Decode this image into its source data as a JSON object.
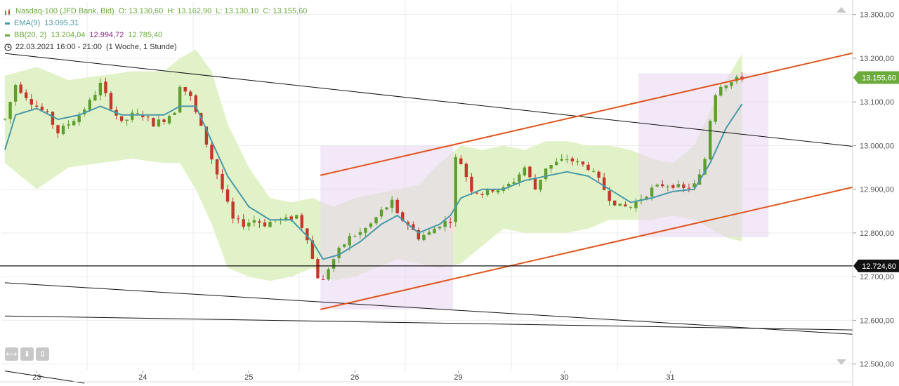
{
  "legend": {
    "instrument": "Nasdaq-100 (JFD Bank, Bid)",
    "open": "O: 13.130,60",
    "high": "H: 13.162,90",
    "low": "L: 13.130,10",
    "close": "C: 13.155,60",
    "ema_label": "EMA(9)",
    "ema_value": "13.095,31",
    "bb_label": "BB(20, 2)",
    "bb_upper": "13.204,04",
    "bb_middle": "12.994,72",
    "bb_lower": "12.785,40",
    "period": "22.03.2021 16:00 - 21:00",
    "timeframe": "(1 Woche, 1 Stunde)"
  },
  "colors": {
    "up": "#5e9e2f",
    "down": "#c0392b",
    "ema": "#4a99a8",
    "bb_fill": "#e2f2c8",
    "bb_lower_text": "#8e2a8e",
    "box": "#e8d6f2",
    "channel": "#e0561c",
    "trendline": "#111111",
    "price_badge": "#6aab3a",
    "level_badge": "#111111"
  },
  "chart_data": {
    "type": "candlestick",
    "ylim": [
      12485,
      13330
    ],
    "y_ticks": [
      12500,
      12600,
      12700,
      12800,
      12900,
      13000,
      13100,
      13200,
      13300
    ],
    "y_tick_labels": [
      "12.500,00",
      "12.600,00",
      "12.700,00",
      "12.800,00",
      "12.900,00",
      "13.000,00",
      "13.100,00",
      "13.200,00",
      "13.300,00"
    ],
    "x_days": [
      "23",
      "24",
      "25",
      "26",
      "29",
      "30",
      "31"
    ],
    "last_price": {
      "value": 13155.6,
      "label": "13.155,60"
    },
    "level": {
      "value": 12724.6,
      "label": "12.724,60"
    },
    "bars": 140,
    "anchors": [
      [
        0,
        13060
      ],
      [
        2,
        13140
      ],
      [
        5,
        13100
      ],
      [
        8,
        13070
      ],
      [
        10,
        13030
      ],
      [
        12,
        13050
      ],
      [
        14,
        13070
      ],
      [
        16,
        13100
      ],
      [
        18,
        13140
      ],
      [
        20,
        13090
      ],
      [
        22,
        13050
      ],
      [
        24,
        13070
      ],
      [
        26,
        13070
      ],
      [
        28,
        13050
      ],
      [
        30,
        13060
      ],
      [
        32,
        13080
      ],
      [
        33,
        13140
      ],
      [
        35,
        13110
      ],
      [
        37,
        13040
      ],
      [
        39,
        12970
      ],
      [
        41,
        12900
      ],
      [
        43,
        12830
      ],
      [
        45,
        12820
      ],
      [
        47,
        12830
      ],
      [
        49,
        12820
      ],
      [
        51,
        12830
      ],
      [
        53,
        12830
      ],
      [
        55,
        12840
      ],
      [
        57,
        12790
      ],
      [
        58,
        12740
      ],
      [
        59,
        12700
      ],
      [
        60,
        12690
      ],
      [
        61,
        12720
      ],
      [
        63,
        12760
      ],
      [
        65,
        12790
      ],
      [
        67,
        12800
      ],
      [
        69,
        12820
      ],
      [
        71,
        12850
      ],
      [
        73,
        12870
      ],
      [
        74,
        12840
      ],
      [
        76,
        12820
      ],
      [
        78,
        12790
      ],
      [
        80,
        12800
      ],
      [
        82,
        12820
      ],
      [
        84,
        12830
      ],
      [
        85,
        12970
      ],
      [
        86,
        12960
      ],
      [
        88,
        12900
      ],
      [
        90,
        12890
      ],
      [
        92,
        12900
      ],
      [
        94,
        12900
      ],
      [
        96,
        12920
      ],
      [
        98,
        12950
      ],
      [
        100,
        12900
      ],
      [
        102,
        12950
      ],
      [
        104,
        12960
      ],
      [
        106,
        12970
      ],
      [
        108,
        12960
      ],
      [
        110,
        12950
      ],
      [
        112,
        12920
      ],
      [
        114,
        12880
      ],
      [
        116,
        12860
      ],
      [
        118,
        12860
      ],
      [
        120,
        12880
      ],
      [
        122,
        12900
      ],
      [
        124,
        12910
      ],
      [
        126,
        12910
      ],
      [
        128,
        12900
      ],
      [
        130,
        12910
      ],
      [
        131,
        12930
      ],
      [
        132,
        12970
      ],
      [
        133,
        13060
      ],
      [
        134,
        13120
      ],
      [
        135,
        13140
      ],
      [
        137,
        13145
      ],
      [
        139,
        13156
      ]
    ],
    "ema": [
      [
        0,
        12990
      ],
      [
        2,
        13070
      ],
      [
        6,
        13085
      ],
      [
        10,
        13060
      ],
      [
        14,
        13070
      ],
      [
        18,
        13090
      ],
      [
        22,
        13070
      ],
      [
        26,
        13070
      ],
      [
        30,
        13070
      ],
      [
        33,
        13090
      ],
      [
        36,
        13090
      ],
      [
        39,
        13010
      ],
      [
        42,
        12930
      ],
      [
        46,
        12860
      ],
      [
        50,
        12830
      ],
      [
        54,
        12830
      ],
      [
        58,
        12780
      ],
      [
        60,
        12740
      ],
      [
        63,
        12750
      ],
      [
        67,
        12780
      ],
      [
        71,
        12820
      ],
      [
        74,
        12840
      ],
      [
        78,
        12800
      ],
      [
        82,
        12820
      ],
      [
        84,
        12840
      ],
      [
        86,
        12880
      ],
      [
        90,
        12900
      ],
      [
        94,
        12900
      ],
      [
        98,
        12920
      ],
      [
        102,
        12930
      ],
      [
        106,
        12940
      ],
      [
        110,
        12930
      ],
      [
        114,
        12900
      ],
      [
        118,
        12870
      ],
      [
        122,
        12880
      ],
      [
        126,
        12895
      ],
      [
        130,
        12900
      ],
      [
        133,
        12960
      ],
      [
        136,
        13040
      ],
      [
        139,
        13095
      ]
    ],
    "bb_upper": [
      [
        0,
        13160
      ],
      [
        6,
        13180
      ],
      [
        12,
        13150
      ],
      [
        18,
        13160
      ],
      [
        24,
        13170
      ],
      [
        30,
        13170
      ],
      [
        33,
        13200
      ],
      [
        36,
        13220
      ],
      [
        39,
        13170
      ],
      [
        42,
        13050
      ],
      [
        46,
        12950
      ],
      [
        50,
        12880
      ],
      [
        54,
        12870
      ],
      [
        58,
        12880
      ],
      [
        62,
        12860
      ],
      [
        66,
        12880
      ],
      [
        70,
        12890
      ],
      [
        74,
        12900
      ],
      [
        78,
        12910
      ],
      [
        82,
        12960
      ],
      [
        86,
        13000
      ],
      [
        90,
        12990
      ],
      [
        94,
        13000
      ],
      [
        98,
        12990
      ],
      [
        102,
        13010
      ],
      [
        106,
        13010
      ],
      [
        110,
        13000
      ],
      [
        114,
        13000
      ],
      [
        118,
        12990
      ],
      [
        122,
        12970
      ],
      [
        126,
        12960
      ],
      [
        130,
        13000
      ],
      [
        133,
        13080
      ],
      [
        136,
        13150
      ],
      [
        139,
        13210
      ]
    ],
    "bb_lower": [
      [
        0,
        12960
      ],
      [
        6,
        12900
      ],
      [
        12,
        12950
      ],
      [
        18,
        12960
      ],
      [
        24,
        12970
      ],
      [
        30,
        12960
      ],
      [
        33,
        12960
      ],
      [
        36,
        12900
      ],
      [
        39,
        12820
      ],
      [
        42,
        12720
      ],
      [
        46,
        12700
      ],
      [
        50,
        12690
      ],
      [
        54,
        12700
      ],
      [
        58,
        12720
      ],
      [
        62,
        12690
      ],
      [
        66,
        12700
      ],
      [
        70,
        12720
      ],
      [
        74,
        12740
      ],
      [
        78,
        12730
      ],
      [
        82,
        12720
      ],
      [
        86,
        12730
      ],
      [
        90,
        12770
      ],
      [
        94,
        12810
      ],
      [
        98,
        12800
      ],
      [
        102,
        12800
      ],
      [
        106,
        12800
      ],
      [
        110,
        12810
      ],
      [
        114,
        12830
      ],
      [
        118,
        12830
      ],
      [
        122,
        12830
      ],
      [
        126,
        12840
      ],
      [
        130,
        12830
      ],
      [
        133,
        12810
      ],
      [
        136,
        12790
      ],
      [
        139,
        12780
      ]
    ],
    "boxes": [
      {
        "from": 59.5,
        "to": 84.5,
        "y_high": 13000,
        "y_low": 12625
      },
      {
        "from": 119.5,
        "to": 144,
        "y_high": 13165,
        "y_low": 12790
      }
    ],
    "channel_lines": [
      [
        [
          59.5,
          12932
        ],
        [
          160,
          13212
        ]
      ],
      [
        [
          59.5,
          12625
        ],
        [
          160,
          12905
        ]
      ]
    ],
    "trend_lines": [
      [
        [
          0,
          13211
        ],
        [
          160,
          12998
        ]
      ],
      [
        [
          0,
          12686
        ],
        [
          160,
          12568
        ]
      ],
      [
        [
          0,
          12610
        ],
        [
          160,
          12578
        ]
      ],
      [
        [
          0,
          12484
        ],
        [
          15,
          12456
        ]
      ]
    ]
  }
}
